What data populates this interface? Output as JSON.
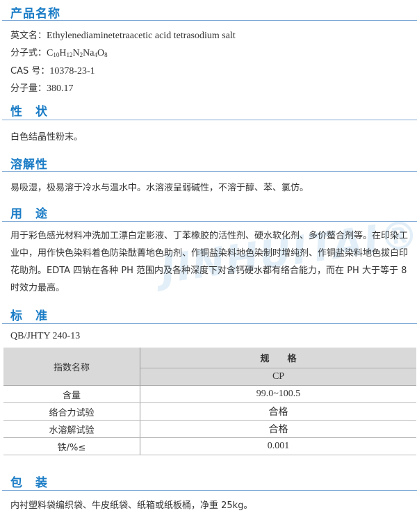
{
  "product_name": {
    "title": "产品名称",
    "english_label": "英文名：",
    "english": "Ethylenediaminetetraacetic acid tetrasodium salt",
    "formula_label": "分子式：",
    "formula": [
      [
        "C",
        "10"
      ],
      [
        "H",
        "12"
      ],
      [
        "N",
        "2"
      ],
      [
        "Na",
        "4"
      ],
      [
        "O",
        "8"
      ]
    ],
    "cas_label": "CAS 号：",
    "cas": "10378-23-1",
    "mw_label": "分子量：",
    "mw": "380.17"
  },
  "properties": {
    "title": "性　状",
    "text": "白色结晶性粉末。"
  },
  "solubility": {
    "title": "溶解性",
    "text": "易吸湿，极易溶于冷水与温水中。水溶液呈弱碱性，不溶于醇、苯、氯仿。"
  },
  "uses": {
    "title": "用　途",
    "text": "用于彩色感光材料冲洗加工漂白定影液、丁苯橡胶的活性剂、硬水软化剂、多价螯合剂等。在印染工业中，用作快色染料着色防染酞菁地色助剂、作铜盐染料地色染制时增纯剂、作铜盐染料地色拔白印花助剂。EDTA 四钠在各种 PH 范围内及各种深度下对含钙硬水都有络合能力，而在 PH 大于等于 8 时效力最高。"
  },
  "standard": {
    "title": "标　准",
    "code": "QB/JHTY 240-13",
    "table": {
      "col1_header": "指数名称",
      "spec_header": "规　　格",
      "grade": "CP",
      "rows": [
        [
          "含量",
          "99.0~100.5"
        ],
        [
          "络合力试验",
          "合格"
        ],
        [
          "水溶解试验",
          "合格"
        ],
        [
          "铁/%≤",
          "0.001"
        ]
      ]
    }
  },
  "packaging": {
    "title": "包　装",
    "text": "内衬塑料袋编织袋、牛皮纸袋、纸箱或纸板桶，净重 25kg。"
  },
  "watermark": "JINHUITAI®",
  "colors": {
    "accent": "#1a7cc6",
    "table_header": "#d9d9d9"
  }
}
